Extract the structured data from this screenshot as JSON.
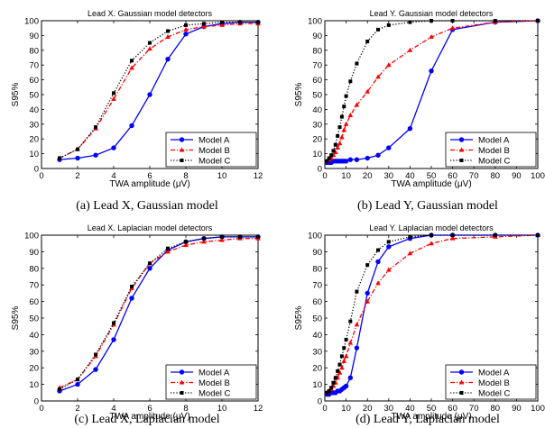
{
  "chart_data": [
    {
      "type": "line",
      "title": "Lead X. Gaussian model detectors",
      "xlabel": "TWA amplitude (μV)",
      "ylabel": "S95%",
      "xlim": [
        0,
        12
      ],
      "ylim": [
        0,
        100
      ],
      "xticks": [
        0,
        2,
        4,
        6,
        8,
        10,
        12
      ],
      "yticks": [
        0,
        10,
        20,
        30,
        40,
        50,
        60,
        70,
        80,
        90,
        100
      ],
      "grid": false,
      "legend_position": "bottom-right",
      "caption": "(a) Lead X, Gaussian model",
      "series": [
        {
          "name": "Model A",
          "color": "#0000ff",
          "marker": "circle",
          "dash": "solid",
          "x": [
            1,
            2,
            3,
            4,
            5,
            6,
            7,
            8,
            9,
            10,
            11,
            12
          ],
          "y": [
            6,
            7,
            9,
            14,
            29,
            50,
            74,
            91,
            96,
            98,
            99,
            99
          ]
        },
        {
          "name": "Model B",
          "color": "#ff0000",
          "marker": "triangle",
          "dash": "dashdot",
          "x": [
            1,
            2,
            3,
            4,
            5,
            6,
            7,
            8,
            9,
            10,
            11,
            12
          ],
          "y": [
            7,
            13,
            27,
            47,
            68,
            81,
            89,
            94,
            96,
            97,
            98,
            98
          ]
        },
        {
          "name": "Model C",
          "color": "#000000",
          "marker": "square",
          "dash": "dotted",
          "x": [
            1,
            2,
            3,
            4,
            5,
            6,
            7,
            8,
            9,
            10,
            11,
            12
          ],
          "y": [
            7,
            13,
            28,
            51,
            73,
            85,
            93,
            97,
            98,
            99,
            99,
            99
          ]
        }
      ]
    },
    {
      "type": "line",
      "title": "Lead Y. Gaussian model detectors",
      "xlabel": "TWA amplitude (μV)",
      "ylabel": "S95%",
      "xlim": [
        0,
        100
      ],
      "ylim": [
        0,
        100
      ],
      "xticks": [
        0,
        10,
        20,
        30,
        40,
        50,
        60,
        70,
        80,
        90,
        100
      ],
      "yticks": [
        0,
        10,
        20,
        30,
        40,
        50,
        60,
        70,
        80,
        90,
        100
      ],
      "grid": false,
      "legend_position": "bottom-right",
      "caption": "(b) Lead Y, Gaussian model",
      "series": [
        {
          "name": "Model A",
          "color": "#0000ff",
          "marker": "circle",
          "dash": "solid",
          "x": [
            1,
            2,
            3,
            4,
            5,
            6,
            7,
            8,
            9,
            10,
            12,
            15,
            20,
            25,
            30,
            40,
            50,
            60,
            80,
            100
          ],
          "y": [
            4,
            4,
            4,
            5,
            5,
            5,
            5,
            5,
            5,
            5,
            6,
            6,
            7,
            9,
            14,
            27,
            66,
            94,
            99,
            100
          ]
        },
        {
          "name": "Model B",
          "color": "#ff0000",
          "marker": "triangle",
          "dash": "dashdot",
          "x": [
            1,
            2,
            3,
            4,
            5,
            6,
            7,
            8,
            9,
            10,
            12,
            15,
            20,
            25,
            30,
            40,
            50,
            60,
            80,
            100
          ],
          "y": [
            5,
            6,
            7,
            9,
            11,
            14,
            17,
            21,
            26,
            30,
            36,
            43,
            52,
            62,
            70,
            80,
            89,
            95,
            99,
            100
          ]
        },
        {
          "name": "Model C",
          "color": "#000000",
          "marker": "square",
          "dash": "dotted",
          "x": [
            1,
            2,
            3,
            4,
            5,
            6,
            7,
            8,
            9,
            10,
            12,
            15,
            20,
            25,
            30,
            40,
            50,
            60,
            80,
            100
          ],
          "y": [
            5,
            7,
            9,
            12,
            16,
            22,
            28,
            35,
            42,
            49,
            59,
            71,
            86,
            94,
            97,
            99,
            100,
            100,
            100,
            100
          ]
        }
      ]
    },
    {
      "type": "line",
      "title": "Lead X. Laplacian model detectors",
      "xlabel": "TWA amplitude (μV)",
      "ylabel": "S95%",
      "xlim": [
        0,
        12
      ],
      "ylim": [
        0,
        100
      ],
      "xticks": [
        0,
        2,
        4,
        6,
        8,
        10,
        12
      ],
      "yticks": [
        0,
        10,
        20,
        30,
        40,
        50,
        60,
        70,
        80,
        90,
        100
      ],
      "grid": false,
      "legend_position": "bottom-right",
      "caption": "(c) Lead X, Laplacian model",
      "series": [
        {
          "name": "Model A",
          "color": "#0000ff",
          "marker": "circle",
          "dash": "solid",
          "x": [
            1,
            2,
            3,
            4,
            5,
            6,
            7,
            8,
            9,
            10,
            11,
            12
          ],
          "y": [
            6,
            10,
            19,
            37,
            62,
            80,
            91,
            96,
            98,
            99,
            99,
            99
          ]
        },
        {
          "name": "Model B",
          "color": "#ff0000",
          "marker": "triangle",
          "dash": "dashdot",
          "x": [
            1,
            2,
            3,
            4,
            5,
            6,
            7,
            8,
            9,
            10,
            11,
            12
          ],
          "y": [
            8,
            13,
            27,
            46,
            68,
            83,
            90,
            94,
            96,
            97,
            98,
            98
          ]
        },
        {
          "name": "Model C",
          "color": "#000000",
          "marker": "square",
          "dash": "dotted",
          "x": [
            1,
            2,
            3,
            4,
            5,
            6,
            7,
            8,
            9,
            10,
            11,
            12
          ],
          "y": [
            7,
            13,
            28,
            47,
            69,
            83,
            92,
            96,
            98,
            99,
            99,
            99
          ]
        }
      ]
    },
    {
      "type": "line",
      "title": "Lead Y. Laplacian model detectors",
      "xlabel": "TWA amplitude (μV)",
      "ylabel": "S95%",
      "xlim": [
        0,
        100
      ],
      "ylim": [
        0,
        100
      ],
      "xticks": [
        0,
        10,
        20,
        30,
        40,
        50,
        60,
        70,
        80,
        90,
        100
      ],
      "yticks": [
        0,
        10,
        20,
        30,
        40,
        50,
        60,
        70,
        80,
        90,
        100
      ],
      "grid": false,
      "legend_position": "bottom-right",
      "caption": "(d) Lead Y, Laplacian model",
      "series": [
        {
          "name": "Model A",
          "color": "#0000ff",
          "marker": "circle",
          "dash": "solid",
          "x": [
            1,
            2,
            3,
            4,
            5,
            6,
            7,
            8,
            9,
            10,
            12,
            15,
            20,
            25,
            30,
            40,
            50,
            60,
            80,
            100
          ],
          "y": [
            4,
            4,
            5,
            5,
            5,
            6,
            6,
            7,
            8,
            9,
            14,
            32,
            65,
            84,
            93,
            98,
            100,
            100,
            100,
            100
          ]
        },
        {
          "name": "Model B",
          "color": "#ff0000",
          "marker": "triangle",
          "dash": "dashdot",
          "x": [
            1,
            2,
            3,
            4,
            5,
            6,
            7,
            8,
            9,
            10,
            12,
            15,
            20,
            25,
            30,
            40,
            50,
            60,
            80,
            100
          ],
          "y": [
            5,
            6,
            7,
            9,
            11,
            14,
            17,
            20,
            24,
            27,
            35,
            46,
            60,
            71,
            79,
            89,
            95,
            98,
            99,
            100
          ]
        },
        {
          "name": "Model C",
          "color": "#000000",
          "marker": "square",
          "dash": "dotted",
          "x": [
            1,
            2,
            3,
            4,
            5,
            6,
            7,
            8,
            9,
            10,
            12,
            15,
            20,
            25,
            30,
            40,
            50,
            60,
            80,
            100
          ],
          "y": [
            5,
            6,
            8,
            11,
            14,
            18,
            22,
            27,
            32,
            37,
            48,
            66,
            82,
            91,
            96,
            99,
            100,
            100,
            100,
            100
          ]
        }
      ]
    }
  ]
}
